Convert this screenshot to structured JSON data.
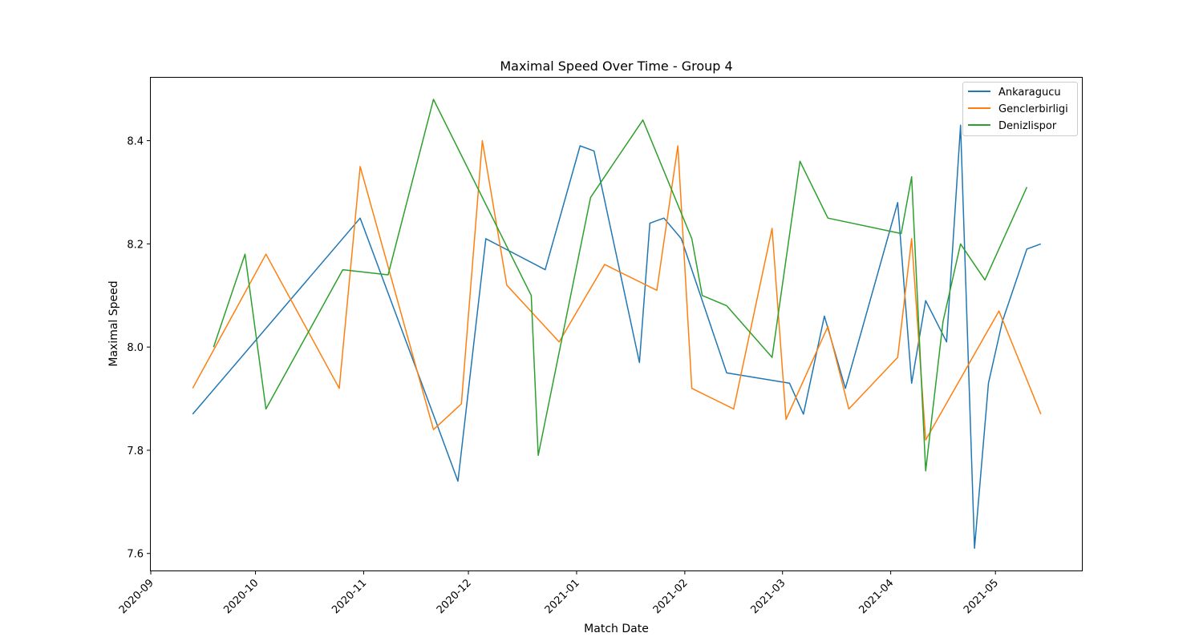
{
  "chart_data": {
    "type": "line",
    "title": "Maximal Speed Over Time - Group 4",
    "xlabel": "Match Date",
    "ylabel": "Maximal Speed",
    "xlim": [
      "2020-09-01",
      "2021-05-26"
    ],
    "ylim": [
      7.567,
      8.522
    ],
    "x_ticks": [
      "2020-09-01",
      "2020-10-01",
      "2020-11-01",
      "2020-12-01",
      "2021-01-01",
      "2021-02-01",
      "2021-03-01",
      "2021-04-01",
      "2021-05-01"
    ],
    "x_tick_labels": [
      "2020-09",
      "2020-10",
      "2020-11",
      "2020-12",
      "2021-01",
      "2021-02",
      "2021-03",
      "2021-04",
      "2021-05"
    ],
    "y_ticks": [
      7.6,
      7.8,
      8.0,
      8.2,
      8.4
    ],
    "y_tick_labels": [
      "7.6",
      "7.8",
      "8.0",
      "8.2",
      "8.4"
    ],
    "grid": false,
    "legend_position": "top-right",
    "series": [
      {
        "name": "Ankaragucu",
        "color": "#1f77b4",
        "points": [
          [
            "2020-09-13",
            7.87
          ],
          [
            "2020-10-31",
            8.25
          ],
          [
            "2020-11-22",
            7.85
          ],
          [
            "2020-11-28",
            7.74
          ],
          [
            "2020-12-06",
            8.21
          ],
          [
            "2020-12-23",
            8.15
          ],
          [
            "2021-01-02",
            8.39
          ],
          [
            "2021-01-06",
            8.38
          ],
          [
            "2021-01-19",
            7.97
          ],
          [
            "2021-01-22",
            8.24
          ],
          [
            "2021-01-26",
            8.25
          ],
          [
            "2021-01-31",
            8.21
          ],
          [
            "2021-02-13",
            7.95
          ],
          [
            "2021-03-03",
            7.93
          ],
          [
            "2021-03-07",
            7.87
          ],
          [
            "2021-03-13",
            8.06
          ],
          [
            "2021-03-19",
            7.92
          ],
          [
            "2021-04-03",
            8.28
          ],
          [
            "2021-04-07",
            7.93
          ],
          [
            "2021-04-11",
            8.09
          ],
          [
            "2021-04-17",
            8.01
          ],
          [
            "2021-04-21",
            8.43
          ],
          [
            "2021-04-25",
            7.61
          ],
          [
            "2021-04-29",
            7.93
          ],
          [
            "2021-05-03",
            8.05
          ],
          [
            "2021-05-10",
            8.19
          ],
          [
            "2021-05-14",
            8.2
          ]
        ]
      },
      {
        "name": "Genclerbirligi",
        "color": "#ff7f0e",
        "points": [
          [
            "2020-09-13",
            7.92
          ],
          [
            "2020-10-04",
            8.18
          ],
          [
            "2020-10-25",
            7.92
          ],
          [
            "2020-10-31",
            8.35
          ],
          [
            "2020-11-21",
            7.84
          ],
          [
            "2020-11-29",
            7.89
          ],
          [
            "2020-12-05",
            8.4
          ],
          [
            "2020-12-12",
            8.12
          ],
          [
            "2020-12-27",
            8.01
          ],
          [
            "2021-01-09",
            8.16
          ],
          [
            "2021-01-24",
            8.11
          ],
          [
            "2021-01-30",
            8.39
          ],
          [
            "2021-02-03",
            7.92
          ],
          [
            "2021-02-15",
            7.88
          ],
          [
            "2021-02-26",
            8.23
          ],
          [
            "2021-03-02",
            7.86
          ],
          [
            "2021-03-14",
            8.04
          ],
          [
            "2021-03-20",
            7.88
          ],
          [
            "2021-04-03",
            7.98
          ],
          [
            "2021-04-07",
            8.21
          ],
          [
            "2021-04-11",
            7.82
          ],
          [
            "2021-05-02",
            8.07
          ],
          [
            "2021-05-14",
            7.87
          ]
        ]
      },
      {
        "name": "Denizlispor",
        "color": "#2ca02c",
        "points": [
          [
            "2020-09-19",
            8.0
          ],
          [
            "2020-09-28",
            8.18
          ],
          [
            "2020-10-04",
            7.88
          ],
          [
            "2020-10-26",
            8.15
          ],
          [
            "2020-11-08",
            8.14
          ],
          [
            "2020-11-21",
            8.48
          ],
          [
            "2020-12-19",
            8.1
          ],
          [
            "2020-12-21",
            7.79
          ],
          [
            "2021-01-05",
            8.29
          ],
          [
            "2021-01-20",
            8.44
          ],
          [
            "2021-02-03",
            8.21
          ],
          [
            "2021-02-06",
            8.1
          ],
          [
            "2021-02-13",
            8.08
          ],
          [
            "2021-02-26",
            7.98
          ],
          [
            "2021-03-06",
            8.36
          ],
          [
            "2021-03-14",
            8.25
          ],
          [
            "2021-04-04",
            8.22
          ],
          [
            "2021-04-07",
            8.33
          ],
          [
            "2021-04-11",
            7.76
          ],
          [
            "2021-04-16",
            8.05
          ],
          [
            "2021-04-21",
            8.2
          ],
          [
            "2021-04-28",
            8.13
          ],
          [
            "2021-05-10",
            8.31
          ]
        ]
      }
    ]
  }
}
